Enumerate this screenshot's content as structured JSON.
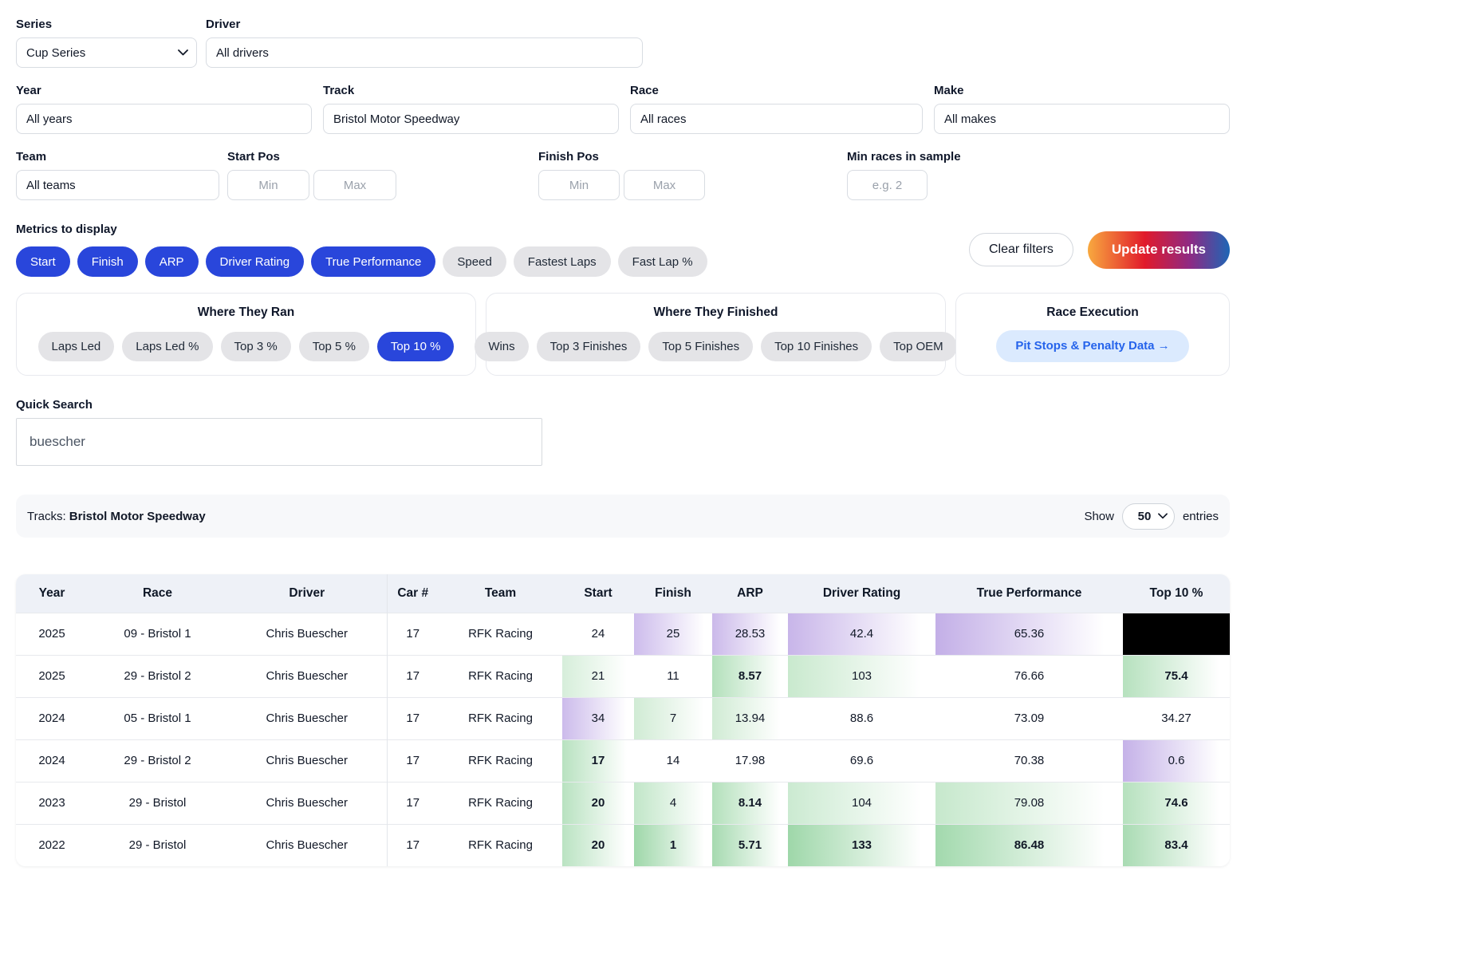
{
  "filters": {
    "series": {
      "label": "Series",
      "value": "Cup Series"
    },
    "driver": {
      "label": "Driver",
      "value": "All drivers"
    },
    "year": {
      "label": "Year",
      "value": "All years"
    },
    "track": {
      "label": "Track",
      "value": "Bristol Motor Speedway"
    },
    "race": {
      "label": "Race",
      "value": "All races"
    },
    "make": {
      "label": "Make",
      "value": "All makes"
    },
    "team": {
      "label": "Team",
      "value": "All teams"
    },
    "start_pos": {
      "label": "Start Pos",
      "min_placeholder": "Min",
      "max_placeholder": "Max"
    },
    "finish_pos": {
      "label": "Finish Pos",
      "min_placeholder": "Min",
      "max_placeholder": "Max"
    },
    "min_races": {
      "label": "Min races in sample",
      "placeholder": "e.g. 2"
    }
  },
  "metrics": {
    "label": "Metrics to display",
    "pills": [
      {
        "label": "Start",
        "selected": true
      },
      {
        "label": "Finish",
        "selected": true
      },
      {
        "label": "ARP",
        "selected": true
      },
      {
        "label": "Driver Rating",
        "selected": true
      },
      {
        "label": "True Performance",
        "selected": true
      },
      {
        "label": "Speed",
        "selected": false
      },
      {
        "label": "Fastest Laps",
        "selected": false
      },
      {
        "label": "Fast Lap %",
        "selected": false
      }
    ]
  },
  "actions": {
    "clear_label": "Clear filters",
    "update_label": "Update results"
  },
  "panels": {
    "ran": {
      "title": "Where They Ran",
      "pills": [
        {
          "label": "Laps Led",
          "selected": false
        },
        {
          "label": "Laps Led %",
          "selected": false
        },
        {
          "label": "Top 3 %",
          "selected": false
        },
        {
          "label": "Top 5 %",
          "selected": false
        },
        {
          "label": "Top 10 %",
          "selected": true
        }
      ]
    },
    "finished": {
      "title": "Where They Finished",
      "pills": [
        {
          "label": "Wins",
          "selected": false
        },
        {
          "label": "Top 3 Finishes",
          "selected": false
        },
        {
          "label": "Top 5 Finishes",
          "selected": false
        },
        {
          "label": "Top 10 Finishes",
          "selected": false
        },
        {
          "label": "Top OEM",
          "selected": false
        }
      ]
    },
    "execution": {
      "title": "Race Execution",
      "link_label": "Pit Stops & Penalty Data →"
    }
  },
  "quick_search": {
    "label": "Quick Search",
    "value": "buescher"
  },
  "results_bar": {
    "tracks_label": "Tracks:",
    "tracks_value": "Bristol Motor Speedway",
    "show_label": "Show",
    "show_value": "50",
    "entries_label": "entries"
  },
  "colors": {
    "accent_blue": "#2946db",
    "pill_gray": "#e4e4e7",
    "link_blue": "#2563eb",
    "link_blue_bg": "#dbeafe",
    "update_gradient": [
      "#f8a93f",
      "#e11a2b",
      "#8e2a84",
      "#1d66b5"
    ],
    "heat_purple": "#c3afe7",
    "heat_green": "#9ed7a9",
    "header_bg": "#eef1f7"
  },
  "table": {
    "columns": [
      "Year",
      "Race",
      "Driver",
      "Car #",
      "Team",
      "Start",
      "Finish",
      "ARP",
      "Driver Rating",
      "True Performance",
      "Top 10 %"
    ],
    "rows": [
      {
        "cells": [
          {
            "v": "2025"
          },
          {
            "v": "09 - Bristol 1"
          },
          {
            "v": "Chris Buescher"
          },
          {
            "v": "17"
          },
          {
            "v": "RFK Racing"
          },
          {
            "v": "24"
          },
          {
            "v": "25",
            "bg": "#cdbcec"
          },
          {
            "v": "28.53",
            "bg": "#cbb9ea"
          },
          {
            "v": "42.4",
            "bg": "#c8b5e9"
          },
          {
            "v": "65.36",
            "bg": "#c3afe7"
          },
          {
            "v": "",
            "bg": "#000000"
          }
        ]
      },
      {
        "cells": [
          {
            "v": "2025"
          },
          {
            "v": "29 - Bristol 2"
          },
          {
            "v": "Chris Buescher"
          },
          {
            "v": "17"
          },
          {
            "v": "RFK Racing"
          },
          {
            "v": "21",
            "bg": "#d6eeda"
          },
          {
            "v": "11"
          },
          {
            "v": "8.57",
            "bg": "#b3e0bb",
            "bold": true
          },
          {
            "v": "103",
            "bg": "#c9e9ce"
          },
          {
            "v": "76.66"
          },
          {
            "v": "75.4",
            "bg": "#b6e1be",
            "bold": true
          }
        ]
      },
      {
        "cells": [
          {
            "v": "2024"
          },
          {
            "v": "05 - Bristol 1"
          },
          {
            "v": "Chris Buescher"
          },
          {
            "v": "17"
          },
          {
            "v": "RFK Racing"
          },
          {
            "v": "34",
            "bg": "#ccbbeb"
          },
          {
            "v": "7",
            "bg": "#d0ebd4"
          },
          {
            "v": "13.94",
            "bg": "#d0ebd4"
          },
          {
            "v": "88.6"
          },
          {
            "v": "73.09"
          },
          {
            "v": "34.27"
          }
        ]
      },
      {
        "cells": [
          {
            "v": "2024"
          },
          {
            "v": "29 - Bristol 2"
          },
          {
            "v": "Chris Buescher"
          },
          {
            "v": "17"
          },
          {
            "v": "RFK Racing"
          },
          {
            "v": "17",
            "bg": "#b8e2c0",
            "bold": true
          },
          {
            "v": "14"
          },
          {
            "v": "17.98"
          },
          {
            "v": "69.6"
          },
          {
            "v": "70.38"
          },
          {
            "v": "0.6",
            "bg": "#c5b2e8"
          }
        ]
      },
      {
        "cells": [
          {
            "v": "2023"
          },
          {
            "v": "29 - Bristol"
          },
          {
            "v": "Chris Buescher"
          },
          {
            "v": "17"
          },
          {
            "v": "RFK Racing"
          },
          {
            "v": "20",
            "bg": "#b8e2c0",
            "bold": true
          },
          {
            "v": "4",
            "bg": "#c1e6c8"
          },
          {
            "v": "8.14",
            "bg": "#b3e0bb",
            "bold": true
          },
          {
            "v": "104",
            "bg": "#cbead1"
          },
          {
            "v": "79.08",
            "bg": "#c6e8cc"
          },
          {
            "v": "74.6",
            "bg": "#b6e1be",
            "bold": true
          }
        ]
      },
      {
        "cells": [
          {
            "v": "2022"
          },
          {
            "v": "29 - Bristol"
          },
          {
            "v": "Chris Buescher"
          },
          {
            "v": "17"
          },
          {
            "v": "RFK Racing"
          },
          {
            "v": "20",
            "bg": "#bae3c2",
            "bold": true
          },
          {
            "v": "1",
            "bg": "#9ed7a9",
            "bold": true
          },
          {
            "v": "5.71",
            "bg": "#a6dab0",
            "bold": true
          },
          {
            "v": "133",
            "bg": "#9ed7a9",
            "bold": true
          },
          {
            "v": "86.48",
            "bg": "#a2d9ad",
            "bold": true
          },
          {
            "v": "83.4",
            "bg": "#a9dbb3",
            "bold": true
          }
        ]
      }
    ]
  }
}
